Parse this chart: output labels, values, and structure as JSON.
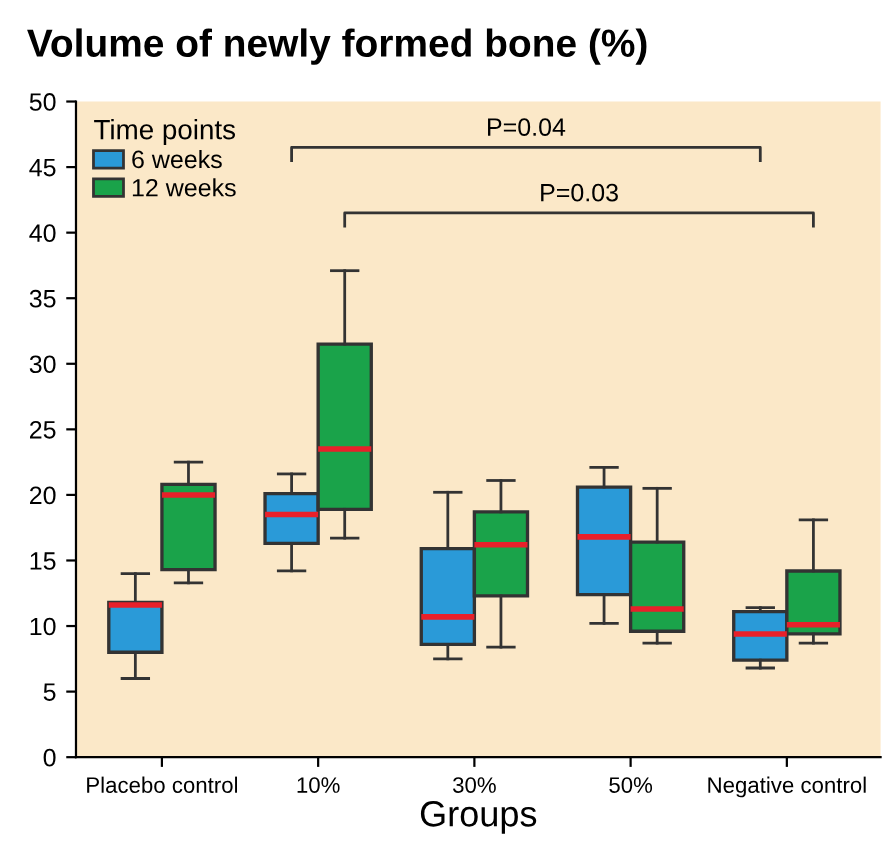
{
  "chart_data": {
    "type": "box",
    "title": "Volume of newly formed bone (%)",
    "xlabel": "Groups",
    "categories": [
      "Placebo control",
      "10%",
      "30%",
      "50%",
      "Negative control"
    ],
    "series": [
      {
        "name": "6 weeks",
        "color": "#2a9ad8",
        "boxes": [
          {
            "low": 6,
            "q1": 8,
            "median": 11.6,
            "q3": 11.8,
            "high": 14
          },
          {
            "low": 14.2,
            "q1": 16.3,
            "median": 18.5,
            "q3": 20.1,
            "high": 21.6
          },
          {
            "low": 7.5,
            "q1": 8.6,
            "median": 10.7,
            "q3": 15.9,
            "high": 20.2
          },
          {
            "low": 10.2,
            "q1": 12.4,
            "median": 16.8,
            "q3": 20.6,
            "high": 22.1
          },
          {
            "low": 6.8,
            "q1": 7.4,
            "median": 9.4,
            "q3": 11.1,
            "high": 11.4
          }
        ]
      },
      {
        "name": "12 weeks",
        "color": "#1aa34a",
        "boxes": [
          {
            "low": 13.3,
            "q1": 14.3,
            "median": 20,
            "q3": 20.8,
            "high": 22.5
          },
          {
            "low": 16.7,
            "q1": 18.9,
            "median": 23.5,
            "q3": 31.5,
            "high": 37.1
          },
          {
            "low": 8.4,
            "q1": 12.3,
            "median": 16.2,
            "q3": 18.7,
            "high": 21.1
          },
          {
            "low": 8.7,
            "q1": 9.6,
            "median": 11.3,
            "q3": 16.4,
            "high": 20.5
          },
          {
            "low": 8.7,
            "q1": 9.4,
            "median": 10.1,
            "q3": 14.2,
            "high": 18.1
          }
        ]
      }
    ],
    "legend_title": "Time points",
    "legend": "top left",
    "ylim": [
      0,
      50
    ],
    "yticks": [
      0,
      5,
      10,
      15,
      20,
      25,
      30,
      35,
      40,
      45,
      50
    ],
    "annotations": [
      "P=0.04",
      "P=0.03"
    ],
    "grid": false
  }
}
